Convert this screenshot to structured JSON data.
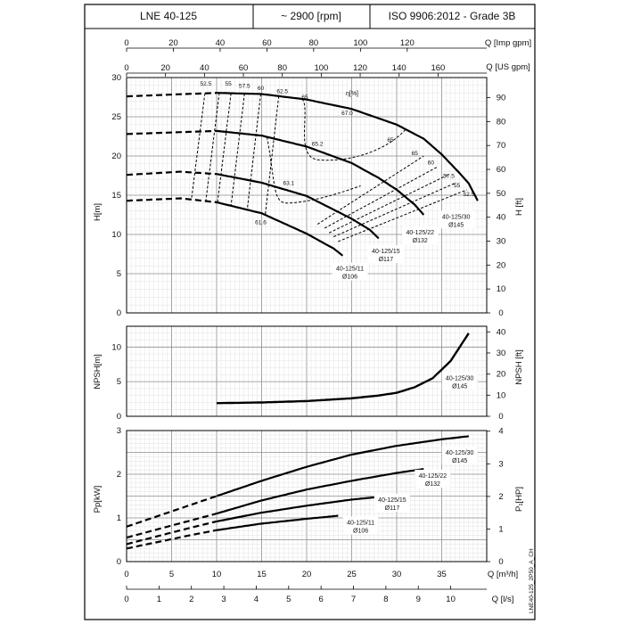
{
  "header": {
    "model": "LNE 40-125",
    "speed": "~ 2900 [rpm]",
    "standard": "ISO 9906:2012 - Grade 3B"
  },
  "drawing_code": "LNE40-125_2P50_A_CH",
  "chart_data": [
    {
      "id": "head",
      "type": "line",
      "top_axes": {
        "imp_gpm": {
          "label": "Q [Imp gpm]",
          "ticks": [
            "0",
            "20",
            "40",
            "60",
            "80",
            "100",
            "120"
          ],
          "range": [
            0,
            154
          ]
        },
        "us_gpm": {
          "label": "Q [US gpm]",
          "ticks": [
            "0",
            "20",
            "40",
            "60",
            "80",
            "100",
            "120",
            "140",
            "160"
          ],
          "range": [
            0,
            185
          ]
        }
      },
      "ylabel_left": "H[m]",
      "ylabel_right": "H [ft]",
      "y_ticks_left": [
        "0",
        "5",
        "10",
        "15",
        "20",
        "25",
        "30"
      ],
      "y_ticks_right": [
        "0",
        "10",
        "20",
        "30",
        "40",
        "50",
        "60",
        "70",
        "80",
        "90"
      ],
      "ylim": [
        0,
        30
      ],
      "y_right_range": [
        0,
        98.4
      ],
      "efficiency_label": "η[%]",
      "series": [
        {
          "name": "40-125/30",
          "label": [
            "40-125/30",
            "Ø145"
          ],
          "points": [
            [
              0,
              27.6
            ],
            [
              10,
              28.05
            ],
            [
              15,
              27.9
            ],
            [
              20,
              27.2
            ],
            [
              25,
              26.0
            ],
            [
              30,
              24.0
            ],
            [
              33,
              22.2
            ],
            [
              35,
              20.2
            ],
            [
              37,
              17.8
            ],
            [
              38,
              16.5
            ],
            [
              39,
              14.3
            ]
          ]
        },
        {
          "name": "40-125/22",
          "label": [
            "40-125/22",
            "Ø132"
          ],
          "points": [
            [
              0,
              22.8
            ],
            [
              10,
              23.2
            ],
            [
              15,
              22.6
            ],
            [
              20,
              21.2
            ],
            [
              25,
              19.1
            ],
            [
              28,
              17.2
            ],
            [
              30,
              15.7
            ],
            [
              32,
              13.8
            ],
            [
              33,
              12.5
            ]
          ]
        },
        {
          "name": "40-125/15",
          "label": [
            "40-125/15",
            "Ø117"
          ],
          "points": [
            [
              0,
              17.6
            ],
            [
              6,
              18.0
            ],
            [
              10,
              17.7
            ],
            [
              15,
              16.6
            ],
            [
              20,
              14.9
            ],
            [
              25,
              12.0
            ],
            [
              27,
              10.6
            ],
            [
              28,
              9.5
            ]
          ]
        },
        {
          "name": "40-125/11",
          "label": [
            "40-125/11",
            "Ø106"
          ],
          "points": [
            [
              0,
              14.3
            ],
            [
              6,
              14.6
            ],
            [
              10,
              14.1
            ],
            [
              15,
              12.7
            ],
            [
              20,
              10.1
            ],
            [
              23,
              8.2
            ],
            [
              24,
              7.3
            ]
          ]
        }
      ],
      "efficiency_labels": [
        {
          "text": "52.5",
          "q": 8.8,
          "h": 29.0
        },
        {
          "text": "55",
          "q": 11.3,
          "h": 29.0
        },
        {
          "text": "57.5",
          "q": 13.1,
          "h": 28.7
        },
        {
          "text": "60",
          "q": 14.9,
          "h": 28.4
        },
        {
          "text": "62.5",
          "q": 17.3,
          "h": 28.0
        },
        {
          "text": "65",
          "q": 19.8,
          "h": 27.3
        },
        {
          "text": "67.0",
          "q": 24.5,
          "h": 25.2
        },
        {
          "text": "65.2",
          "q": 21.2,
          "h": 21.3
        },
        {
          "text": "63.1",
          "q": 18.0,
          "h": 16.3
        },
        {
          "text": "61.6",
          "q": 14.9,
          "h": 11.3
        },
        {
          "text": "65",
          "q": 29.3,
          "h": 21.8
        },
        {
          "text": "65",
          "q": 32.0,
          "h": 20.1
        },
        {
          "text": "60",
          "q": 33.8,
          "h": 18.9
        },
        {
          "text": "57.5",
          "q": 35.8,
          "h": 17.2
        },
        {
          "text": "55",
          "q": 36.7,
          "h": 16.0
        },
        {
          "text": "52.5",
          "q": 38.0,
          "h": 14.9
        }
      ]
    },
    {
      "id": "npsh",
      "type": "line",
      "ylabel_left": "NPSH[m]",
      "ylabel_right": "NPSH [ft]",
      "y_ticks_left": [
        "0",
        "5",
        "10"
      ],
      "y_ticks_right": [
        "0",
        "10",
        "20",
        "30",
        "40"
      ],
      "ylim": [
        0,
        13
      ],
      "y_right_range": [
        0,
        42.65
      ],
      "series": [
        {
          "name": "40-125/30",
          "label": [
            "40-125/30",
            "Ø145"
          ],
          "points": [
            [
              10,
              1.9
            ],
            [
              15,
              2.0
            ],
            [
              20,
              2.2
            ],
            [
              25,
              2.6
            ],
            [
              28,
              3.0
            ],
            [
              30,
              3.4
            ],
            [
              32,
              4.2
            ],
            [
              34,
              5.5
            ],
            [
              36,
              8.0
            ],
            [
              37,
              10.0
            ],
            [
              38,
              12.0
            ]
          ]
        }
      ]
    },
    {
      "id": "power",
      "type": "line",
      "xlabel": "Q [m³/h]",
      "xlabel_ls": "Q [l/s]",
      "x_ticks": [
        "0",
        "5",
        "10",
        "15",
        "20",
        "25",
        "30",
        "35"
      ],
      "x_ticks_ls": [
        "0",
        "1",
        "2",
        "3",
        "4",
        "5",
        "6",
        "7",
        "8",
        "9",
        "10"
      ],
      "xlim": [
        0,
        40
      ],
      "ylabel_left": "Pp[kW]",
      "ylabel_right": "P₁[HP]",
      "y_ticks_left": [
        "0",
        "1",
        "2",
        "3"
      ],
      "y_ticks_right": [
        "0",
        "1",
        "2",
        "3",
        "4"
      ],
      "ylim": [
        0,
        3
      ],
      "y_right_range": [
        0,
        4.02
      ],
      "series": [
        {
          "name": "40-125/30",
          "label": [
            "40-125/30",
            "Ø145"
          ],
          "points": [
            [
              0,
              0.8
            ],
            [
              10,
              1.5
            ],
            [
              15,
              1.85
            ],
            [
              20,
              2.17
            ],
            [
              25,
              2.45
            ],
            [
              30,
              2.65
            ],
            [
              35,
              2.8
            ],
            [
              38,
              2.87
            ]
          ]
        },
        {
          "name": "40-125/22",
          "label": [
            "40-125/22",
            "Ø132"
          ],
          "points": [
            [
              0,
              0.55
            ],
            [
              10,
              1.1
            ],
            [
              15,
              1.4
            ],
            [
              20,
              1.65
            ],
            [
              25,
              1.85
            ],
            [
              30,
              2.03
            ],
            [
              33,
              2.12
            ]
          ]
        },
        {
          "name": "40-125/15",
          "label": [
            "40-125/15",
            "Ø117"
          ],
          "points": [
            [
              0,
              0.4
            ],
            [
              7,
              0.77
            ],
            [
              10,
              0.92
            ],
            [
              15,
              1.12
            ],
            [
              20,
              1.28
            ],
            [
              25,
              1.42
            ],
            [
              27.5,
              1.47
            ]
          ]
        },
        {
          "name": "40-125/11",
          "label": [
            "40-125/11",
            "Ø106"
          ],
          "points": [
            [
              0,
              0.3
            ],
            [
              7,
              0.6
            ],
            [
              10,
              0.72
            ],
            [
              15,
              0.87
            ],
            [
              20,
              0.98
            ],
            [
              23.5,
              1.05
            ]
          ]
        }
      ]
    }
  ]
}
